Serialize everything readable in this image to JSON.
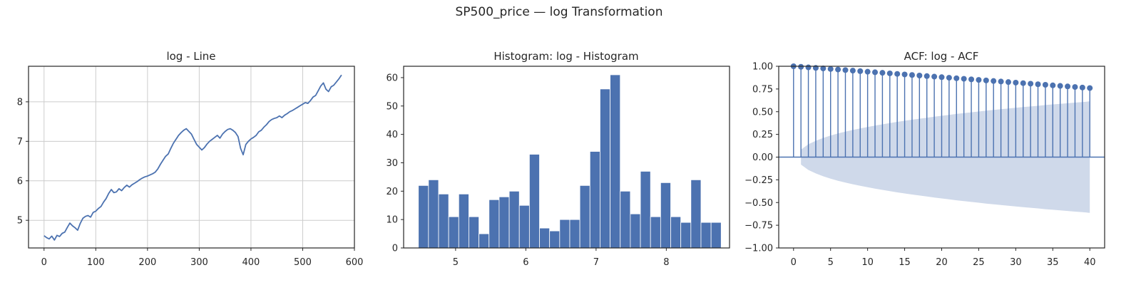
{
  "figure": {
    "suptitle": "SP500_price — log Transformation"
  },
  "chart_data": [
    {
      "type": "line",
      "title": "log - Line",
      "xlim": [
        -30,
        600
      ],
      "ylim": [
        4.3,
        8.9
      ],
      "xticks": [
        0,
        100,
        200,
        300,
        400,
        500,
        600
      ],
      "yticks": [
        5,
        6,
        7,
        8
      ],
      "grid": true,
      "color": "#4c72b0",
      "series": [
        {
          "x": [
            0,
            5,
            10,
            15,
            20,
            25,
            30,
            35,
            40,
            45,
            50,
            55,
            60,
            65,
            70,
            75,
            80,
            85,
            90,
            95,
            100,
            105,
            110,
            115,
            120,
            125,
            130,
            135,
            140,
            145,
            150,
            155,
            160,
            165,
            170,
            175,
            180,
            185,
            190,
            195,
            200,
            205,
            210,
            215,
            220,
            225,
            230,
            235,
            240,
            245,
            250,
            255,
            260,
            265,
            270,
            275,
            280,
            285,
            290,
            295,
            300,
            305,
            310,
            315,
            320,
            325,
            330,
            335,
            340,
            345,
            350,
            355,
            360,
            365,
            370,
            375,
            380,
            385,
            390,
            395,
            400,
            405,
            410,
            415,
            420,
            425,
            430,
            435,
            440,
            445,
            450,
            455,
            460,
            465,
            470,
            475,
            480,
            485,
            490,
            495,
            500,
            505,
            510,
            515,
            520,
            525,
            530,
            535,
            540,
            545,
            550,
            555,
            560,
            565,
            570,
            575
          ],
          "y": [
            4.61,
            4.56,
            4.53,
            4.6,
            4.5,
            4.62,
            4.59,
            4.67,
            4.7,
            4.82,
            4.93,
            4.86,
            4.81,
            4.75,
            4.92,
            5.05,
            5.1,
            5.12,
            5.08,
            5.2,
            5.23,
            5.3,
            5.35,
            5.46,
            5.55,
            5.68,
            5.78,
            5.7,
            5.72,
            5.8,
            5.75,
            5.83,
            5.89,
            5.84,
            5.9,
            5.94,
            5.98,
            6.03,
            6.07,
            6.1,
            6.12,
            6.15,
            6.18,
            6.22,
            6.3,
            6.42,
            6.52,
            6.62,
            6.68,
            6.82,
            6.95,
            7.05,
            7.15,
            7.22,
            7.28,
            7.32,
            7.25,
            7.18,
            7.05,
            6.92,
            6.85,
            6.78,
            6.84,
            6.93,
            7.0,
            7.05,
            7.1,
            7.15,
            7.08,
            7.18,
            7.25,
            7.3,
            7.32,
            7.28,
            7.22,
            7.12,
            6.82,
            6.66,
            6.92,
            7.0,
            7.06,
            7.1,
            7.15,
            7.24,
            7.28,
            7.36,
            7.42,
            7.5,
            7.55,
            7.58,
            7.6,
            7.64,
            7.6,
            7.66,
            7.7,
            7.75,
            7.78,
            7.82,
            7.86,
            7.9,
            7.94,
            7.98,
            7.96,
            8.03,
            8.12,
            8.16,
            8.28,
            8.4,
            8.48,
            8.32,
            8.26,
            8.38,
            8.42,
            8.5,
            8.58,
            8.68
          ]
        }
      ]
    },
    {
      "type": "bar",
      "title": "Histogram: log - Histogram",
      "xlim": [
        4.26,
        8.9
      ],
      "ylim": [
        0,
        64
      ],
      "xticks": [
        5,
        6,
        7,
        8
      ],
      "yticks": [
        0,
        10,
        20,
        30,
        40,
        50,
        60
      ],
      "grid": false,
      "color": "#4c72b0",
      "bin_start": 4.47,
      "bin_width": 0.1437,
      "values": [
        22,
        24,
        19,
        11,
        19,
        11,
        5,
        17,
        18,
        20,
        15,
        33,
        7,
        6,
        10,
        10,
        22,
        34,
        56,
        61,
        20,
        12,
        27,
        11,
        23,
        11,
        9,
        24,
        9,
        9
      ]
    },
    {
      "type": "scatter",
      "title": "ACF: log - ACF",
      "xlim": [
        -2,
        42
      ],
      "ylim": [
        -1.0,
        1.0
      ],
      "xticks": [
        0,
        5,
        10,
        15,
        20,
        25,
        30,
        35,
        40
      ],
      "yticks": [
        -1.0,
        -0.75,
        -0.5,
        -0.25,
        0.0,
        0.25,
        0.5,
        0.75,
        1.0
      ],
      "ytick_labels": [
        "−1.00",
        "−0.75",
        "−0.50",
        "−0.25",
        "0.00",
        "0.25",
        "0.50",
        "0.75",
        "1.00"
      ],
      "grid": false,
      "color": "#4c72b0",
      "band_color": "#cfd9ea",
      "lags": [
        0,
        1,
        2,
        3,
        4,
        5,
        6,
        7,
        8,
        9,
        10,
        11,
        12,
        13,
        14,
        15,
        16,
        17,
        18,
        19,
        20,
        21,
        22,
        23,
        24,
        25,
        26,
        27,
        28,
        29,
        30,
        31,
        32,
        33,
        34,
        35,
        36,
        37,
        38,
        39,
        40
      ],
      "acf": [
        1.0,
        0.994,
        0.988,
        0.982,
        0.976,
        0.97,
        0.964,
        0.958,
        0.952,
        0.946,
        0.94,
        0.934,
        0.928,
        0.922,
        0.916,
        0.91,
        0.904,
        0.898,
        0.892,
        0.886,
        0.88,
        0.874,
        0.868,
        0.862,
        0.856,
        0.85,
        0.844,
        0.838,
        0.832,
        0.826,
        0.82,
        0.814,
        0.808,
        0.802,
        0.796,
        0.79,
        0.784,
        0.778,
        0.772,
        0.766,
        0.76
      ],
      "confint_upper": [
        null,
        0.082,
        0.141,
        0.18,
        0.211,
        0.237,
        0.26,
        0.28,
        0.299,
        0.316,
        0.332,
        0.347,
        0.361,
        0.375,
        0.388,
        0.4,
        0.412,
        0.423,
        0.434,
        0.445,
        0.455,
        0.465,
        0.475,
        0.484,
        0.493,
        0.502,
        0.511,
        0.519,
        0.527,
        0.535,
        0.543,
        0.551,
        0.558,
        0.565,
        0.573,
        0.58,
        0.587,
        0.593,
        0.6,
        0.606,
        0.613
      ]
    }
  ]
}
